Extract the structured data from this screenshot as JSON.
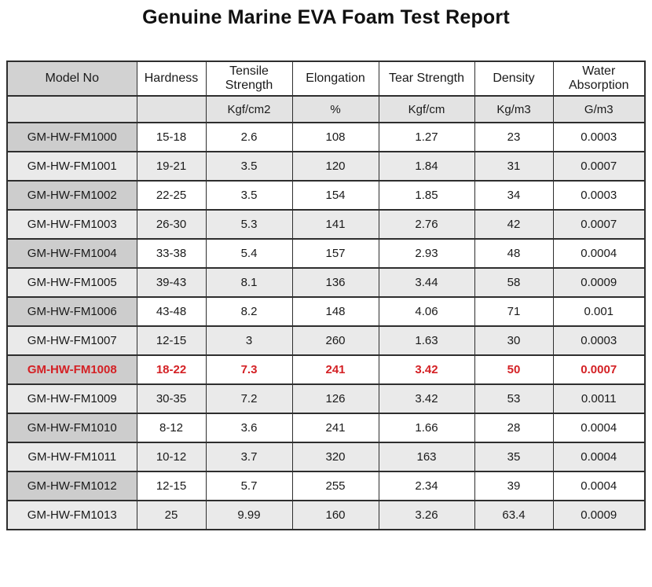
{
  "title": "Genuine Marine EVA Foam Test Report",
  "colors": {
    "highlight_text": "#d42125",
    "border": "#2e2e2e",
    "model_header_bg": "#d2d2d2",
    "model_cell_bg": "#cdcdcd",
    "units_row_bg": "#e3e3e3",
    "shaded_row_bg": "#eaeaea"
  },
  "table": {
    "columns": [
      {
        "key": "model",
        "label": "Model No",
        "unit": ""
      },
      {
        "key": "hardness",
        "label": "Hardness",
        "unit": ""
      },
      {
        "key": "tensile",
        "label": "Tensile Strength",
        "unit": "Kgf/cm2"
      },
      {
        "key": "elongation",
        "label": "Elongation",
        "unit": "%"
      },
      {
        "key": "tear",
        "label": "Tear Strength",
        "unit": "Kgf/cm"
      },
      {
        "key": "density",
        "label": "Density",
        "unit": "Kg/m3"
      },
      {
        "key": "water",
        "label": "Water Absorption",
        "unit": "G/m3"
      }
    ],
    "rows": [
      {
        "model": "GM-HW-FM1000",
        "hardness": "15-18",
        "tensile": "2.6",
        "elongation": "108",
        "tear": "1.27",
        "density": "23",
        "water": "0.0003",
        "highlight": false
      },
      {
        "model": "GM-HW-FM1001",
        "hardness": "19-21",
        "tensile": "3.5",
        "elongation": "120",
        "tear": "1.84",
        "density": "31",
        "water": "0.0007",
        "highlight": false
      },
      {
        "model": "GM-HW-FM1002",
        "hardness": "22-25",
        "tensile": "3.5",
        "elongation": "154",
        "tear": "1.85",
        "density": "34",
        "water": "0.0003",
        "highlight": false
      },
      {
        "model": "GM-HW-FM1003",
        "hardness": "26-30",
        "tensile": "5.3",
        "elongation": "141",
        "tear": "2.76",
        "density": "42",
        "water": "0.0007",
        "highlight": false
      },
      {
        "model": "GM-HW-FM1004",
        "hardness": "33-38",
        "tensile": "5.4",
        "elongation": "157",
        "tear": "2.93",
        "density": "48",
        "water": "0.0004",
        "highlight": false
      },
      {
        "model": "GM-HW-FM1005",
        "hardness": "39-43",
        "tensile": "8.1",
        "elongation": "136",
        "tear": "3.44",
        "density": "58",
        "water": "0.0009",
        "highlight": false
      },
      {
        "model": "GM-HW-FM1006",
        "hardness": "43-48",
        "tensile": "8.2",
        "elongation": "148",
        "tear": "4.06",
        "density": "71",
        "water": "0.001",
        "highlight": false
      },
      {
        "model": "GM-HW-FM1007",
        "hardness": "12-15",
        "tensile": "3",
        "elongation": "260",
        "tear": "1.63",
        "density": "30",
        "water": "0.0003",
        "highlight": false
      },
      {
        "model": "GM-HW-FM1008",
        "hardness": "18-22",
        "tensile": "7.3",
        "elongation": "241",
        "tear": "3.42",
        "density": "50",
        "water": "0.0007",
        "highlight": true
      },
      {
        "model": "GM-HW-FM1009",
        "hardness": "30-35",
        "tensile": "7.2",
        "elongation": "126",
        "tear": "3.42",
        "density": "53",
        "water": "0.0011",
        "highlight": false
      },
      {
        "model": "GM-HW-FM1010",
        "hardness": "8-12",
        "tensile": "3.6",
        "elongation": "241",
        "tear": "1.66",
        "density": "28",
        "water": "0.0004",
        "highlight": false
      },
      {
        "model": "GM-HW-FM1011",
        "hardness": "10-12",
        "tensile": "3.7",
        "elongation": "320",
        "tear": "163",
        "density": "35",
        "water": "0.0004",
        "highlight": false
      },
      {
        "model": "GM-HW-FM1012",
        "hardness": "12-15",
        "tensile": "5.7",
        "elongation": "255",
        "tear": "2.34",
        "density": "39",
        "water": "0.0004",
        "highlight": false
      },
      {
        "model": "GM-HW-FM1013",
        "hardness": "25",
        "tensile": "9.99",
        "elongation": "160",
        "tear": "3.26",
        "density": "63.4",
        "water": "0.0009",
        "highlight": false
      }
    ]
  }
}
